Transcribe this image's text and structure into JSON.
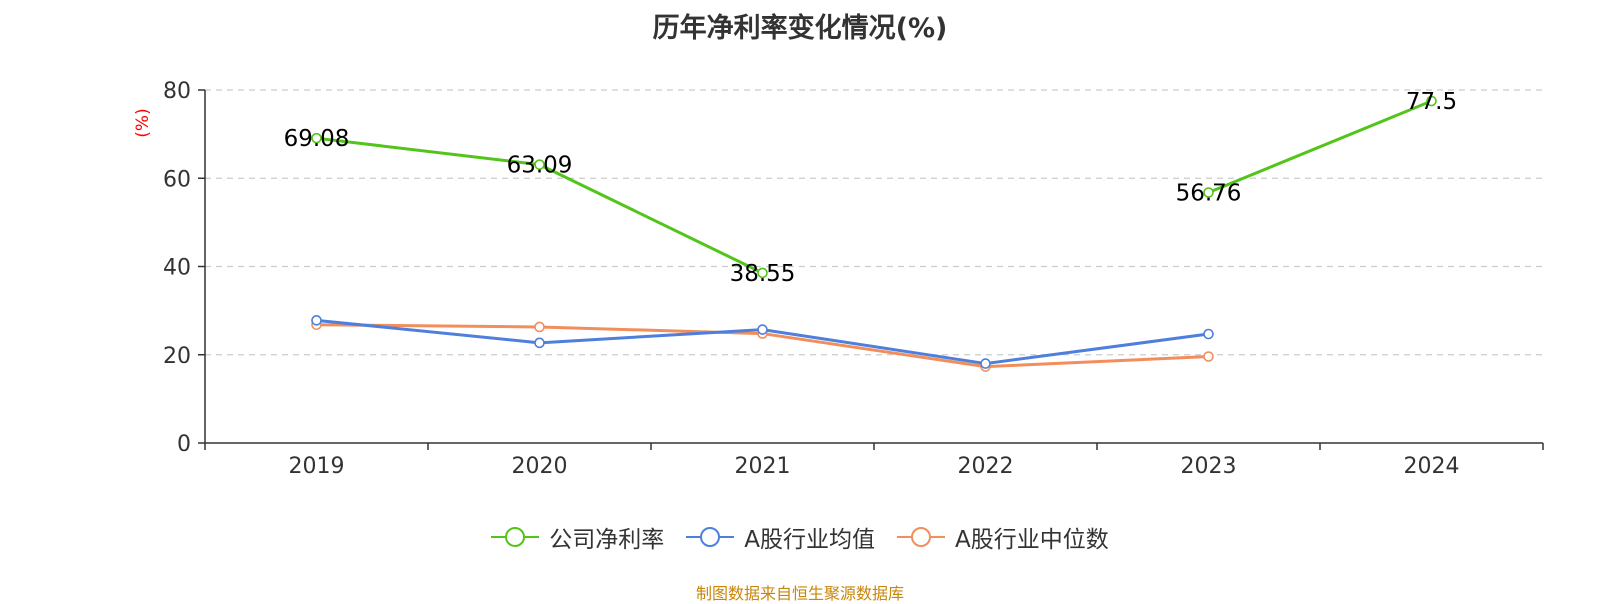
{
  "chart_data": {
    "type": "line",
    "title": "历年净利率变化情况(%)",
    "ylabel": "(%)",
    "xlabel": "",
    "categories": [
      "2019",
      "2020",
      "2021",
      "2022",
      "2023",
      "2024"
    ],
    "ylim": [
      0,
      80
    ],
    "yticks": [
      0,
      20,
      40,
      60,
      80
    ],
    "grid": true,
    "legend_position": "bottom",
    "series": [
      {
        "name": "公司净利率",
        "color": "#52c41a",
        "values": [
          69.08,
          63.09,
          38.55,
          null,
          56.76,
          77.5
        ],
        "labels": [
          "69.08",
          "63.09",
          "38.55",
          "",
          "56.76",
          "77.5"
        ]
      },
      {
        "name": "A股行业均值",
        "color": "#4e7fdd",
        "values": [
          27.8,
          22.7,
          25.7,
          18.0,
          24.7,
          null
        ]
      },
      {
        "name": "A股行业中位数",
        "color": "#f28e5c",
        "values": [
          26.8,
          26.3,
          24.8,
          17.3,
          19.6,
          null
        ]
      }
    ]
  },
  "source_note": "制图数据来自恒生聚源数据库"
}
